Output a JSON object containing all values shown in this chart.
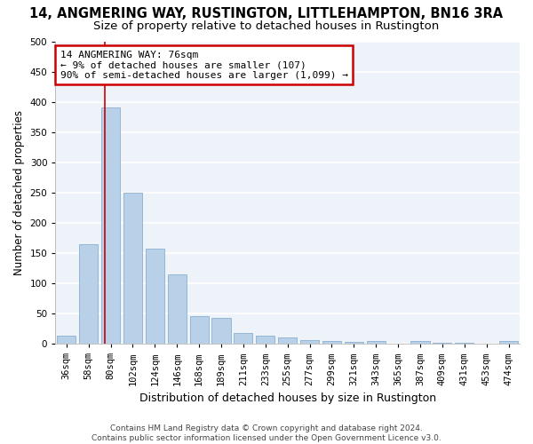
{
  "title1": "14, ANGMERING WAY, RUSTINGTON, LITTLEHAMPTON, BN16 3RA",
  "title2": "Size of property relative to detached houses in Rustington",
  "xlabel": "Distribution of detached houses by size in Rustington",
  "ylabel": "Number of detached properties",
  "categories": [
    "36sqm",
    "58sqm",
    "80sqm",
    "102sqm",
    "124sqm",
    "146sqm",
    "168sqm",
    "189sqm",
    "211sqm",
    "233sqm",
    "255sqm",
    "277sqm",
    "299sqm",
    "321sqm",
    "343sqm",
    "365sqm",
    "387sqm",
    "409sqm",
    "431sqm",
    "453sqm",
    "474sqm"
  ],
  "values": [
    13,
    165,
    390,
    250,
    157,
    115,
    45,
    43,
    18,
    14,
    10,
    6,
    5,
    3,
    4,
    0,
    5,
    1,
    1,
    0,
    4
  ],
  "bar_color": "#b8d0e8",
  "bar_edge_color": "#8ab0d0",
  "vline_x_idx": 1.72,
  "vline_color": "#cc0000",
  "annotation_line1": "14 ANGMERING WAY: 76sqm",
  "annotation_line2": "← 9% of detached houses are smaller (107)",
  "annotation_line3": "90% of semi-detached houses are larger (1,099) →",
  "annotation_box_color": "#cc0000",
  "ylim": [
    0,
    500
  ],
  "yticks": [
    0,
    50,
    100,
    150,
    200,
    250,
    300,
    350,
    400,
    450,
    500
  ],
  "footer": "Contains HM Land Registry data © Crown copyright and database right 2024.\nContains public sector information licensed under the Open Government Licence v3.0.",
  "bg_color": "#eef2f9",
  "grid_color": "#ffffff",
  "title1_fontsize": 10.5,
  "title2_fontsize": 9.5,
  "xlabel_fontsize": 9,
  "ylabel_fontsize": 8.5,
  "tick_fontsize": 7.5,
  "annotation_fontsize": 8,
  "footer_fontsize": 6.5
}
